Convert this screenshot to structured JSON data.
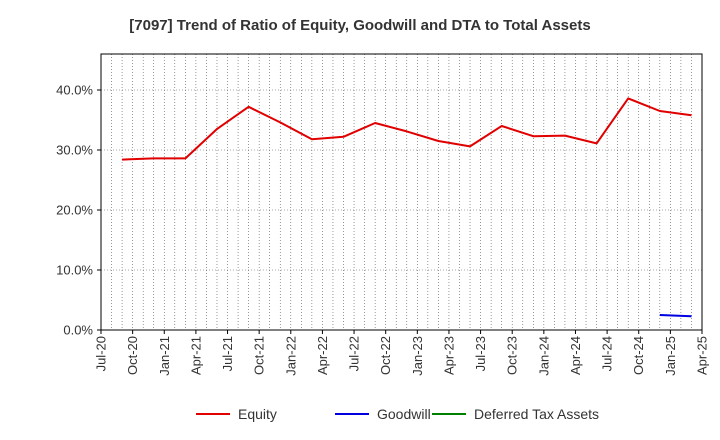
{
  "chart_data": {
    "type": "line",
    "title": "[7097]  Trend of Ratio of Equity, Goodwill and DTA to Total Assets",
    "xlabel": "",
    "ylabel": "",
    "y_axis": {
      "range": [
        0,
        46
      ],
      "ticks": [
        0,
        10,
        20,
        30,
        40
      ],
      "tick_labels": [
        "0.0%",
        "10.0%",
        "20.0%",
        "30.0%",
        "40.0%"
      ]
    },
    "x_axis": {
      "tick_labels": [
        "Jul-20",
        "Oct-20",
        "Jan-21",
        "Apr-21",
        "Jul-21",
        "Oct-21",
        "Jan-22",
        "Apr-22",
        "Jul-22",
        "Oct-22",
        "Jan-23",
        "Apr-23",
        "Jul-23",
        "Oct-23",
        "Jan-24",
        "Apr-24",
        "Jul-24",
        "Oct-24",
        "Jan-25",
        "Apr-25"
      ]
    },
    "x": [
      "Sep-20",
      "Dec-20",
      "Mar-21",
      "Jun-21",
      "Sep-21",
      "Dec-21",
      "Mar-22",
      "Jun-22",
      "Sep-22",
      "Dec-22",
      "Mar-23",
      "Jun-23",
      "Sep-23",
      "Dec-23",
      "Mar-24",
      "Jun-24",
      "Sep-24",
      "Dec-24",
      "Mar-25"
    ],
    "grid": true,
    "legend_position": "bottom",
    "series": [
      {
        "name": "Equity",
        "color": "#e00000",
        "values": [
          28.4,
          28.6,
          28.6,
          33.5,
          37.2,
          34.6,
          31.8,
          32.2,
          34.5,
          33.1,
          31.5,
          30.6,
          34.0,
          32.3,
          32.4,
          31.1,
          38.6,
          36.5,
          35.8
        ]
      },
      {
        "name": "Goodwill",
        "color": "#0000e0",
        "values": [
          null,
          null,
          null,
          null,
          null,
          null,
          null,
          null,
          null,
          null,
          null,
          null,
          null,
          null,
          null,
          null,
          null,
          2.5,
          2.3
        ]
      },
      {
        "name": "Deferred Tax Assets",
        "color": "#008000",
        "values": [
          null,
          null,
          null,
          null,
          null,
          null,
          null,
          null,
          null,
          null,
          null,
          null,
          null,
          null,
          null,
          null,
          null,
          null,
          null
        ]
      }
    ]
  }
}
